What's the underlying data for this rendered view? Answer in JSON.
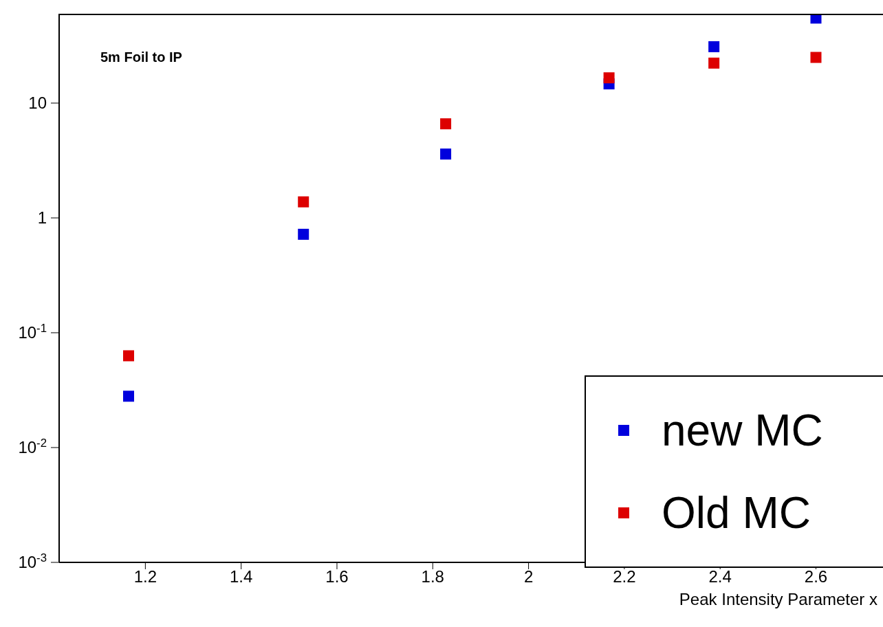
{
  "chart_data": {
    "type": "scatter",
    "title": "5m Foil to IP",
    "xlabel": "Peak Intensity Parameter x",
    "x": [
      1.165,
      1.53,
      1.827,
      2.168,
      2.387,
      2.6
    ],
    "series": [
      {
        "name": "new MC",
        "color": "#0000dd",
        "values": [
          0.028,
          0.72,
          3.6,
          14.7,
          31,
          55
        ]
      },
      {
        "name": "Old MC",
        "color": "#dd0000",
        "values": [
          0.063,
          1.38,
          6.6,
          16.6,
          22.3,
          25
        ]
      }
    ],
    "xlim": [
      1.02,
      2.74
    ],
    "xticks": [
      1.2,
      1.4,
      1.6,
      1.8,
      2,
      2.2,
      2.4,
      2.6
    ],
    "ylim": [
      0.001,
      60
    ],
    "yticks": [
      {
        "value": 0.001,
        "label": "10$^{-3}$"
      },
      {
        "value": 0.01,
        "label": "10$^{-2}$"
      },
      {
        "value": 0.1,
        "label": "10$^{-1}$"
      },
      1,
      10
    ],
    "log": "y",
    "legend": "bottom right",
    "marker": "square"
  }
}
